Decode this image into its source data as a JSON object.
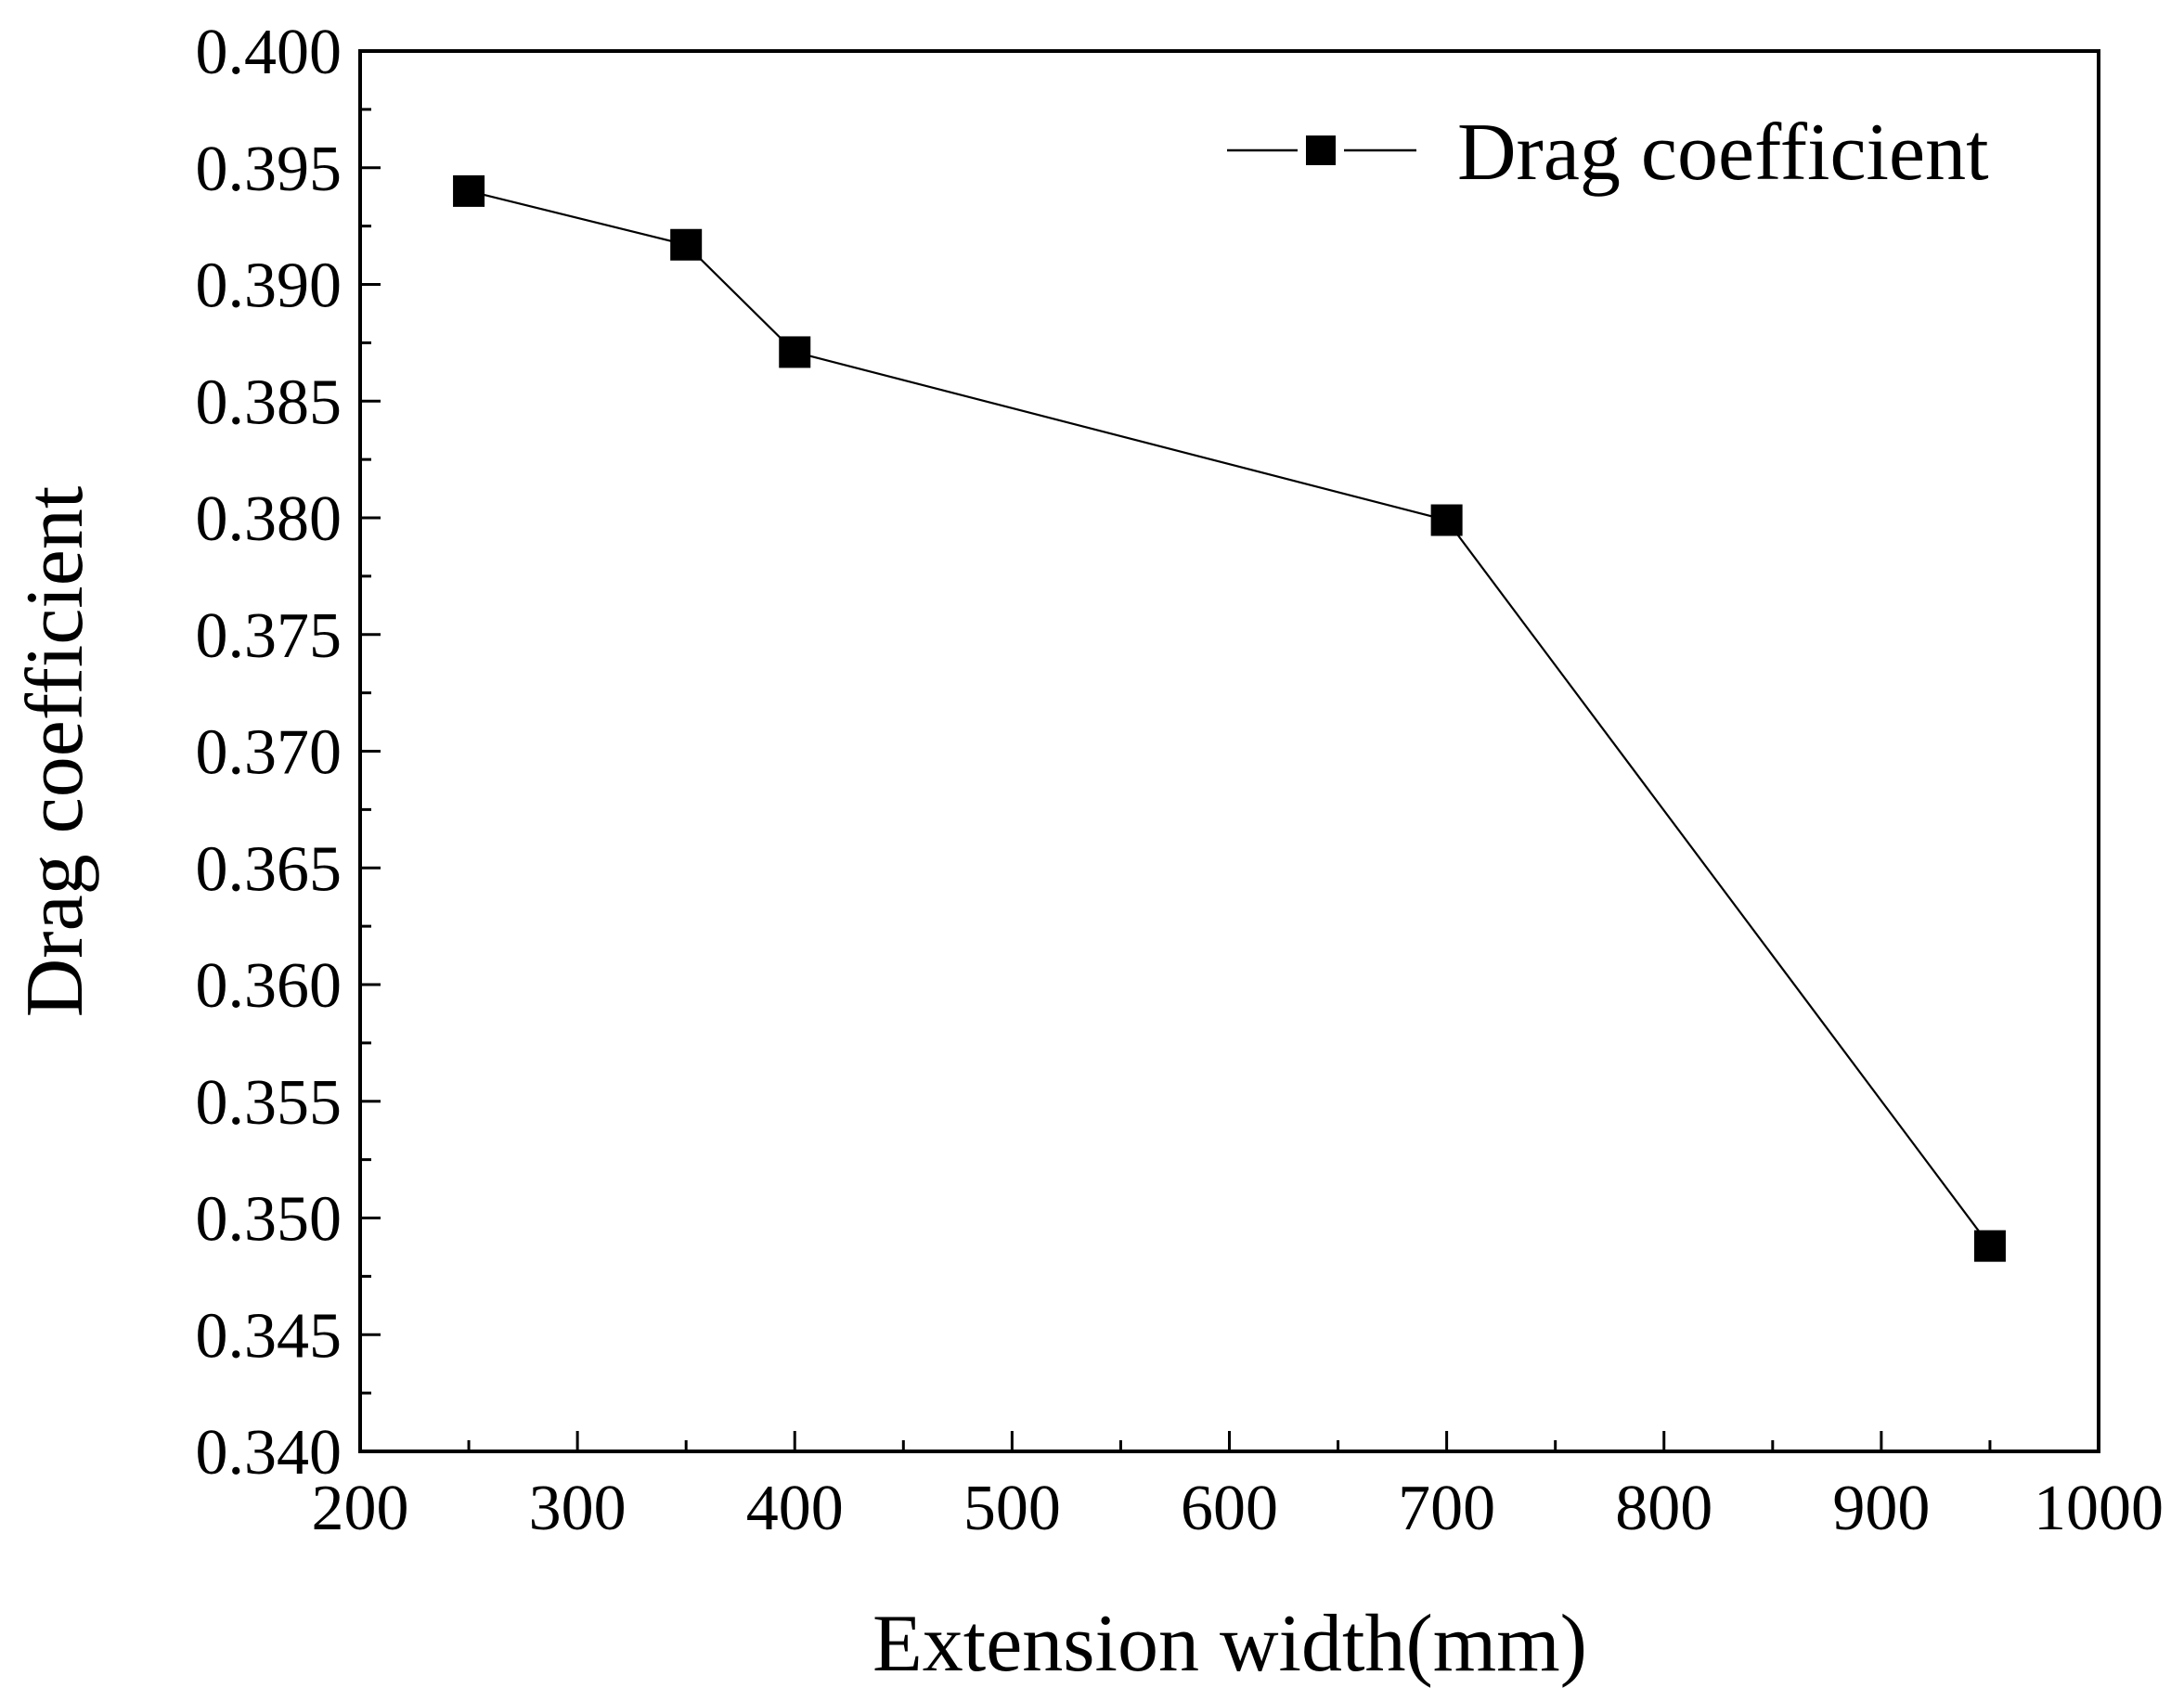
{
  "chart_data": {
    "type": "line",
    "title": "",
    "xlabel": "Extension width(mm)",
    "ylabel": "Drag coefficient",
    "xlim": [
      200,
      1000
    ],
    "ylim": [
      0.34,
      0.4
    ],
    "x_ticks": [
      "200",
      "300",
      "400",
      "500",
      "600",
      "700",
      "800",
      "900",
      "1000"
    ],
    "y_ticks": [
      "0.340",
      "0.345",
      "0.350",
      "0.355",
      "0.360",
      "0.365",
      "0.370",
      "0.375",
      "0.380",
      "0.385",
      "0.390",
      "0.395",
      "0.400"
    ],
    "grid": false,
    "legend_position": "top-right",
    "series": [
      {
        "name": "Drag coefficient",
        "marker": "square",
        "color": "#000000",
        "x": [
          250,
          350,
          400,
          700,
          950
        ],
        "y": [
          0.394,
          0.3917,
          0.3871,
          0.3799,
          0.3488
        ]
      }
    ]
  }
}
